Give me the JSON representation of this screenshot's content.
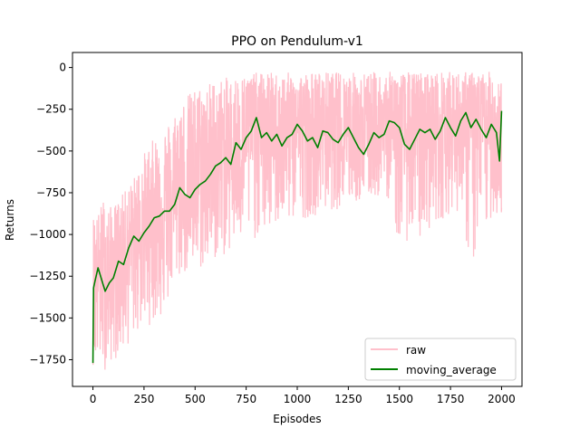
{
  "chart_data": {
    "type": "line",
    "title": "PPO on Pendulum-v1",
    "xlabel": "Episodes",
    "ylabel": "Returns",
    "xlim": [
      -100,
      2100
    ],
    "ylim": [
      -1910,
      90
    ],
    "x_ticks": [
      0,
      250,
      500,
      750,
      1000,
      1250,
      1500,
      1750,
      2000
    ],
    "x_tick_labels": [
      "0",
      "250",
      "500",
      "750",
      "1000",
      "1250",
      "1500",
      "1750",
      "2000"
    ],
    "y_ticks": [
      0,
      -250,
      -500,
      -750,
      -1000,
      -1250,
      -1500,
      -1750
    ],
    "y_tick_labels": [
      "0",
      "−250",
      "−500",
      "−750",
      "−1000",
      "−1250",
      "−1500",
      "−1750"
    ],
    "grid": false,
    "legend_position": "bottom-right",
    "series": [
      {
        "name": "raw",
        "color": "#ffc0cb",
        "style": "noisy",
        "x": [
          0,
          25,
          50,
          75,
          100,
          150,
          200,
          250,
          300,
          350,
          400,
          450,
          500,
          550,
          600,
          650,
          700,
          750,
          800,
          850,
          900,
          950,
          1000,
          1050,
          1100,
          1150,
          1200,
          1250,
          1300,
          1350,
          1400,
          1450,
          1500,
          1550,
          1600,
          1650,
          1700,
          1750,
          1800,
          1850,
          1900,
          1950,
          2000
        ],
        "low": [
          -1780,
          -1820,
          -1830,
          -1780,
          -1760,
          -1710,
          -1620,
          -1560,
          -1530,
          -1500,
          -1290,
          -1250,
          -1240,
          -1210,
          -1160,
          -1130,
          -1090,
          -1050,
          -1030,
          -1000,
          -960,
          -940,
          -910,
          -900,
          -880,
          -860,
          -850,
          -830,
          -810,
          -790,
          -780,
          -790,
          -1100,
          -1020,
          -1050,
          -960,
          -920,
          -870,
          -860,
          -1240,
          -1080,
          -900,
          -920
        ],
        "high": [
          -870,
          -880,
          -780,
          -830,
          -830,
          -750,
          -660,
          -510,
          -420,
          -360,
          -260,
          -170,
          -120,
          -90,
          -70,
          -60,
          -50,
          -40,
          -30,
          -25,
          -30,
          -30,
          -30,
          -25,
          -25,
          -25,
          -25,
          -25,
          -25,
          -25,
          -25,
          -25,
          -25,
          -25,
          -25,
          -25,
          -25,
          -25,
          -25,
          -25,
          -25,
          -25,
          -25
        ]
      },
      {
        "name": "moving_average",
        "color": "#008000",
        "x": [
          0,
          3,
          10,
          25,
          40,
          60,
          80,
          100,
          125,
          150,
          175,
          200,
          225,
          250,
          275,
          300,
          325,
          350,
          375,
          400,
          425,
          450,
          475,
          500,
          525,
          550,
          575,
          600,
          625,
          650,
          675,
          700,
          725,
          750,
          775,
          800,
          825,
          850,
          875,
          900,
          925,
          950,
          975,
          1000,
          1025,
          1050,
          1075,
          1100,
          1125,
          1150,
          1175,
          1200,
          1225,
          1250,
          1275,
          1300,
          1325,
          1350,
          1375,
          1400,
          1425,
          1450,
          1475,
          1500,
          1525,
          1550,
          1575,
          1600,
          1625,
          1650,
          1675,
          1700,
          1725,
          1750,
          1775,
          1800,
          1825,
          1850,
          1875,
          1900,
          1925,
          1950,
          1975,
          1990,
          2000
        ],
        "y": [
          -1770,
          -1320,
          -1280,
          -1200,
          -1260,
          -1340,
          -1290,
          -1260,
          -1160,
          -1180,
          -1080,
          -1010,
          -1040,
          -990,
          -950,
          -900,
          -890,
          -860,
          -860,
          -820,
          -720,
          -760,
          -780,
          -730,
          -700,
          -680,
          -640,
          -590,
          -570,
          -540,
          -580,
          -450,
          -490,
          -420,
          -380,
          -300,
          -420,
          -390,
          -440,
          -400,
          -470,
          -420,
          -400,
          -340,
          -380,
          -440,
          -420,
          -480,
          -380,
          -390,
          -430,
          -450,
          -400,
          -360,
          -420,
          -480,
          -520,
          -460,
          -390,
          -420,
          -400,
          -320,
          -330,
          -360,
          -460,
          -490,
          -430,
          -370,
          -390,
          -370,
          -430,
          -380,
          -300,
          -360,
          -410,
          -320,
          -270,
          -360,
          -310,
          -370,
          -420,
          -340,
          -390,
          -560,
          -260
        ]
      }
    ]
  }
}
